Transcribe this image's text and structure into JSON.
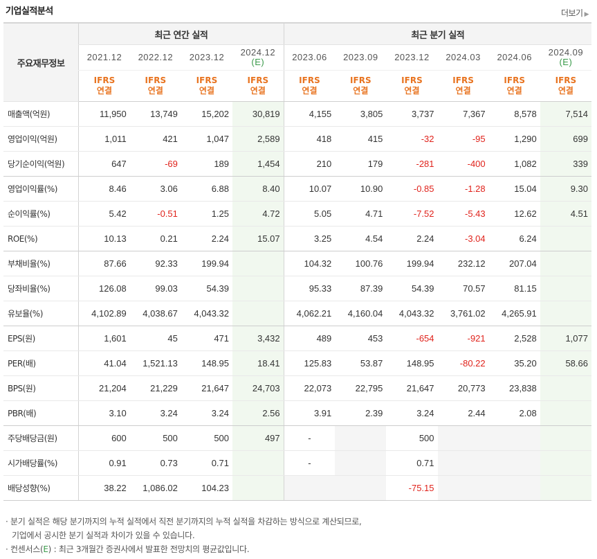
{
  "title": "기업실적분석",
  "more_label": "더보기",
  "head_label": "주요재무정보",
  "groups": {
    "annual": "최근 연간 실적",
    "quarter": "최근 분기 실적"
  },
  "periods": [
    {
      "date": "2021.12",
      "est": ""
    },
    {
      "date": "2022.12",
      "est": ""
    },
    {
      "date": "2023.12",
      "est": ""
    },
    {
      "date": "2024.12",
      "est": "(E)"
    },
    {
      "date": "2023.06",
      "est": ""
    },
    {
      "date": "2023.09",
      "est": ""
    },
    {
      "date": "2023.12",
      "est": ""
    },
    {
      "date": "2024.03",
      "est": ""
    },
    {
      "date": "2024.06",
      "est": ""
    },
    {
      "date": "2024.09",
      "est": "(E)"
    }
  ],
  "std_line1": "IFRS",
  "std_line2": "연결",
  "rows": [
    {
      "label": "매출액(억원)",
      "values": [
        "11,950",
        "13,749",
        "15,202",
        "30,819",
        "4,155",
        "3,805",
        "3,737",
        "7,367",
        "8,578",
        "7,514"
      ]
    },
    {
      "label": "영업이익(억원)",
      "values": [
        "1,011",
        "421",
        "1,047",
        "2,589",
        "418",
        "415",
        "-32",
        "-95",
        "1,290",
        "699"
      ]
    },
    {
      "label": "당기순이익(억원)",
      "values": [
        "647",
        "-69",
        "189",
        "1,454",
        "210",
        "179",
        "-281",
        "-400",
        "1,082",
        "339"
      ]
    },
    {
      "label": "영업이익률(%)",
      "values": [
        "8.46",
        "3.06",
        "6.88",
        "8.40",
        "10.07",
        "10.90",
        "-0.85",
        "-1.28",
        "15.04",
        "9.30"
      ]
    },
    {
      "label": "순이익률(%)",
      "values": [
        "5.42",
        "-0.51",
        "1.25",
        "4.72",
        "5.05",
        "4.71",
        "-7.52",
        "-5.43",
        "12.62",
        "4.51"
      ]
    },
    {
      "label": "ROE(%)",
      "values": [
        "10.13",
        "0.21",
        "2.24",
        "15.07",
        "3.25",
        "4.54",
        "2.24",
        "-3.04",
        "6.24",
        ""
      ]
    },
    {
      "label": "부채비율(%)",
      "values": [
        "87.66",
        "92.33",
        "199.94",
        "",
        "104.32",
        "100.76",
        "199.94",
        "232.12",
        "207.04",
        ""
      ]
    },
    {
      "label": "당좌비율(%)",
      "values": [
        "126.08",
        "99.03",
        "54.39",
        "",
        "95.33",
        "87.39",
        "54.39",
        "70.57",
        "81.15",
        ""
      ]
    },
    {
      "label": "유보율(%)",
      "values": [
        "4,102.89",
        "4,038.67",
        "4,043.32",
        "",
        "4,062.21",
        "4,160.04",
        "4,043.32",
        "3,761.02",
        "4,265.91",
        ""
      ]
    },
    {
      "label": "EPS(원)",
      "values": [
        "1,601",
        "45",
        "471",
        "3,432",
        "489",
        "453",
        "-654",
        "-921",
        "2,528",
        "1,077"
      ]
    },
    {
      "label": "PER(배)",
      "values": [
        "41.04",
        "1,521.13",
        "148.95",
        "18.41",
        "125.83",
        "53.87",
        "148.95",
        "-80.22",
        "35.20",
        "58.66"
      ]
    },
    {
      "label": "BPS(원)",
      "values": [
        "21,204",
        "21,229",
        "21,647",
        "24,703",
        "22,073",
        "22,795",
        "21,647",
        "20,773",
        "23,838",
        ""
      ]
    },
    {
      "label": "PBR(배)",
      "values": [
        "3.10",
        "3.24",
        "3.24",
        "2.56",
        "3.91",
        "2.39",
        "3.24",
        "2.44",
        "2.08",
        ""
      ]
    },
    {
      "label": "주당배당금(원)",
      "values": [
        "600",
        "500",
        "500",
        "497",
        "-",
        "",
        "500",
        "",
        "",
        ""
      ]
    },
    {
      "label": "시가배당률(%)",
      "values": [
        "0.91",
        "0.73",
        "0.71",
        "",
        "-",
        "",
        "0.71",
        "",
        "",
        ""
      ]
    },
    {
      "label": "배당성향(%)",
      "values": [
        "38.22",
        "1,086.02",
        "104.23",
        "",
        "",
        "",
        "-75.15",
        "",
        "",
        ""
      ]
    }
  ],
  "notes": {
    "line1": "· 분기 실적은 해당 분기까지의 누적 실적에서 직전 분기까지의 누적 실적을 차감하는 방식으로 계산되므로,",
    "line2": "기업에서 공시한 분기 실적과 차이가 있을 수 있습니다.",
    "line3_prefix": "· 컨센서스(",
    "line3_mark": "E",
    "line3_suffix": ") : 최근 3개월간 증권사에서 발표한 전망치의 평균값입니다."
  },
  "colors": {
    "negative": "#e0221b",
    "standard": "#e8731f",
    "estimate": "#3a9a4a",
    "estimate_bg": "#f1f8ef",
    "empty_bg": "#f5f5f5"
  }
}
